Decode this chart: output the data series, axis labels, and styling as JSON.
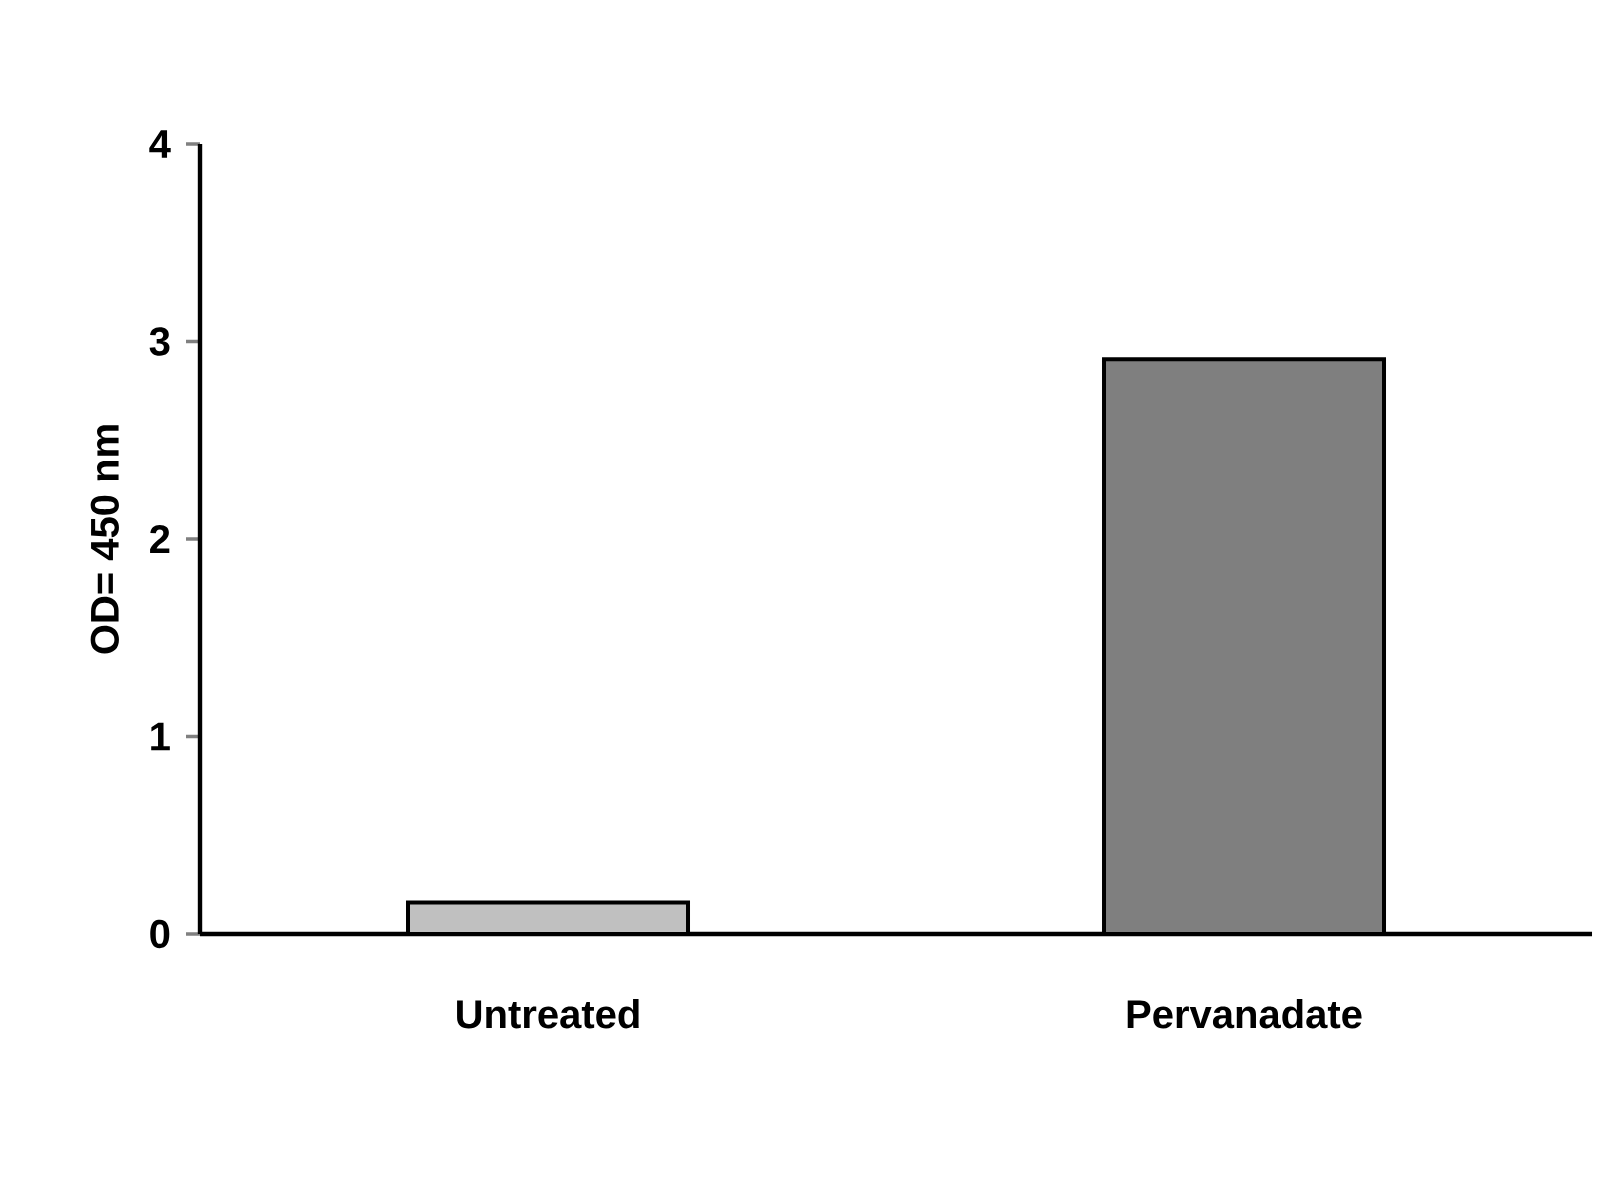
{
  "chart_data": {
    "type": "bar",
    "ylabel": "OD= 450 nm",
    "categories": [
      "Untreated",
      "Pervanadate"
    ],
    "values": [
      0.16,
      2.91
    ],
    "colors": [
      "#c0c0c0",
      "#7f7f7f"
    ],
    "ylim": [
      0,
      4
    ],
    "yticks": [
      0,
      1,
      2,
      3,
      4
    ],
    "grid": false
  }
}
